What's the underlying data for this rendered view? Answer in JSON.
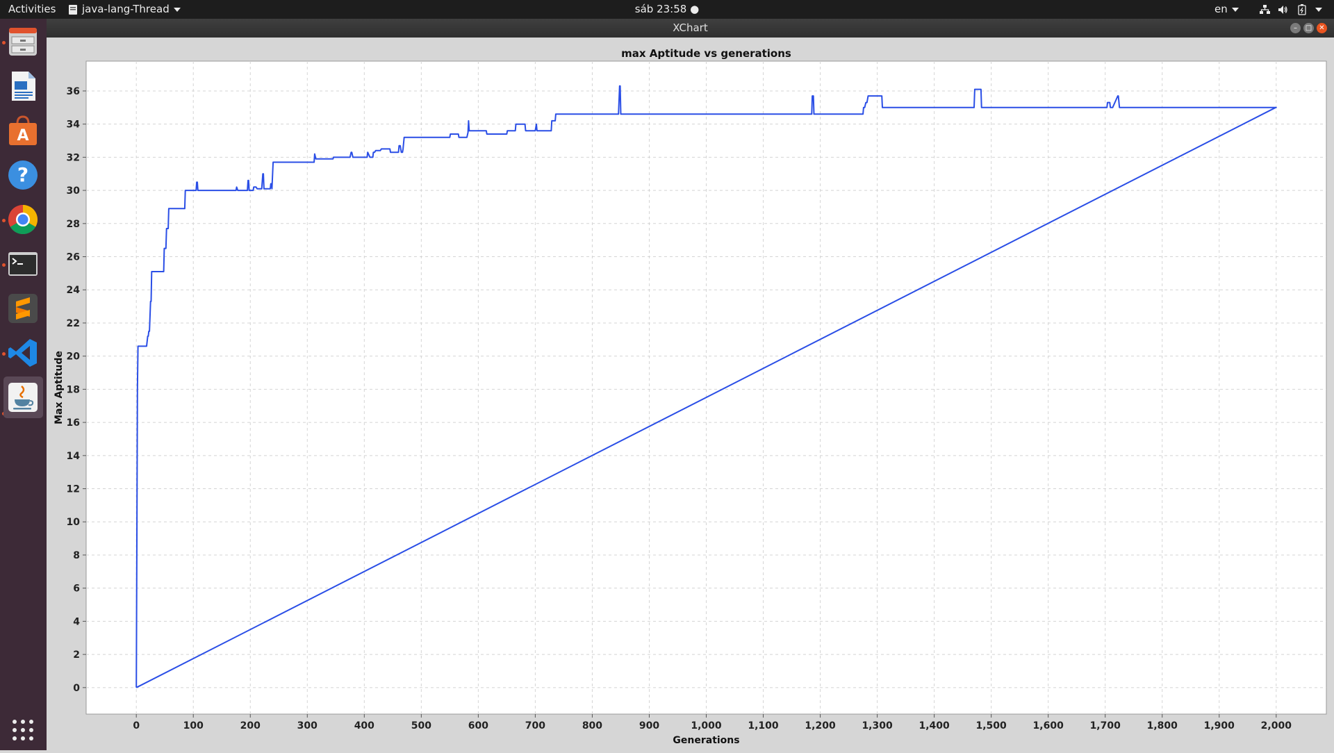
{
  "topbar": {
    "activities": "Activities",
    "app_menu": "java-lang-Thread",
    "clock": "sáb 23:58 ●",
    "language": "en"
  },
  "window": {
    "title": "XChart"
  },
  "dock": {
    "icons": [
      "file-cabinet-icon",
      "writer-document-icon",
      "software-store-icon",
      "help-icon",
      "chrome-icon",
      "terminal-icon",
      "sublime-text-icon",
      "vscode-icon",
      "java-icon",
      "app-grid-icon"
    ]
  },
  "chart_data": {
    "type": "line",
    "title": "max Aptitude vs generations",
    "xlabel": "Generations",
    "ylabel": "Max Aptitude",
    "xlim": [
      -88,
      2088
    ],
    "ylim": [
      -1.6,
      37.8
    ],
    "x_ticks": [
      0,
      100,
      200,
      300,
      400,
      500,
      600,
      700,
      800,
      900,
      1000,
      1100,
      1200,
      1300,
      1400,
      1500,
      1600,
      1700,
      1800,
      1900,
      2000
    ],
    "x_tick_labels": [
      "0",
      "100",
      "200",
      "300",
      "400",
      "500",
      "600",
      "700",
      "800",
      "900",
      "1,000",
      "1,100",
      "1,200",
      "1,300",
      "1,400",
      "1,500",
      "1,600",
      "1,700",
      "1,800",
      "1,900",
      "2,000"
    ],
    "y_ticks": [
      0,
      2,
      4,
      6,
      8,
      10,
      12,
      14,
      16,
      18,
      20,
      22,
      24,
      26,
      28,
      30,
      32,
      34,
      36
    ],
    "y_tick_labels": [
      "0",
      "2",
      "4",
      "6",
      "8",
      "10",
      "12",
      "14",
      "16",
      "18",
      "20",
      "22",
      "24",
      "26",
      "28",
      "30",
      "32",
      "34",
      "36"
    ],
    "grid": true,
    "line_color": "#2a4ee6",
    "series": [
      {
        "x": [
          0,
          2,
          3,
          18,
          20,
          21,
          22,
          23,
          25,
          26,
          27,
          48,
          49,
          52,
          53,
          56,
          57,
          85,
          86,
          105,
          106,
          107,
          108,
          175,
          176,
          178,
          195,
          196,
          197,
          198,
          205,
          206,
          210,
          212,
          220,
          222,
          223,
          224,
          235,
          236,
          237,
          238,
          240,
          312,
          313,
          315,
          345,
          346,
          375,
          377,
          378,
          380,
          405,
          406,
          410,
          415,
          416,
          418,
          420,
          422,
          428,
          430,
          445,
          446,
          460,
          461,
          463,
          465,
          467,
          468,
          470,
          550,
          551,
          565,
          566,
          580,
          582,
          583,
          584,
          614,
          615,
          650,
          651,
          665,
          666,
          682,
          683,
          700,
          701,
          702,
          703,
          728,
          729,
          735,
          736,
          845,
          846,
          848,
          849,
          850,
          1185,
          1186,
          1188,
          1189,
          1190,
          1275,
          1276,
          1278,
          1280,
          1282,
          1284,
          1285,
          1286,
          1308,
          1309,
          1470,
          1471,
          1482,
          1483,
          1703,
          1704,
          1708,
          1709,
          1712,
          1713,
          1722,
          1723,
          1725,
          1726,
          2000,
          1999,
          0
        ],
        "y": [
          0,
          18,
          20.6,
          20.6,
          21.2,
          21.2,
          21.5,
          21.5,
          23.3,
          23.3,
          25.1,
          25.1,
          26.5,
          26.5,
          27.7,
          27.7,
          28.9,
          28.9,
          30.0,
          30.0,
          30.5,
          30.5,
          30.0,
          30.0,
          30.2,
          30.0,
          30.0,
          30.6,
          30.6,
          30.0,
          30.0,
          30.2,
          30.2,
          30.1,
          30.1,
          31.0,
          31.0,
          30.1,
          30.1,
          30.4,
          30.4,
          30.1,
          31.7,
          31.7,
          32.2,
          31.9,
          31.9,
          32.0,
          32.0,
          32.3,
          32.3,
          32.0,
          32.0,
          32.3,
          32.0,
          32.0,
          32.3,
          32.3,
          32.4,
          32.4,
          32.4,
          32.5,
          32.5,
          32.3,
          32.3,
          32.7,
          32.7,
          32.3,
          32.3,
          32.5,
          33.2,
          33.2,
          33.4,
          33.4,
          33.2,
          33.2,
          33.5,
          34.2,
          33.6,
          33.6,
          33.4,
          33.4,
          33.6,
          33.6,
          34.0,
          34.0,
          33.6,
          33.6,
          33.8,
          34.0,
          33.6,
          33.6,
          34.2,
          34.2,
          34.6,
          34.6,
          34.6,
          36.3,
          36.3,
          34.6,
          34.6,
          35.7,
          35.7,
          34.6,
          34.6,
          34.6,
          35.0,
          35.0,
          35.3,
          35.3,
          35.7,
          35.7,
          35.7,
          35.7,
          35.0,
          35.0,
          36.1,
          36.1,
          35.0,
          35.0,
          35.3,
          35.3,
          35.0,
          35.0,
          35.0,
          35.7,
          35.7,
          35.0,
          35.0,
          35.0,
          35.0,
          0
        ]
      }
    ]
  }
}
